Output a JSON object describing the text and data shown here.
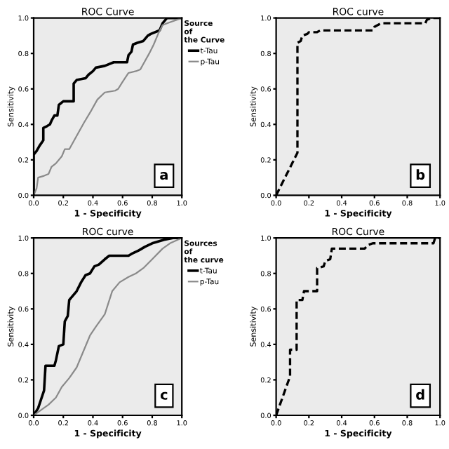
{
  "chart_data": [
    {
      "type": "line",
      "title": "ROC Curve",
      "xlabel": "1 - Specificity",
      "ylabel": "Sensitivity",
      "legend_title": "Source of the Curve",
      "legend": "right",
      "annotations": [
        "a"
      ],
      "xlim": [
        0,
        1
      ],
      "ylim": [
        0,
        1
      ],
      "xticks": [
        {
          "value": 0,
          "label": "0.0"
        },
        {
          "value": 0.2,
          "label": "0.2"
        },
        {
          "value": 0.4,
          "label": "0.4"
        },
        {
          "value": 0.6,
          "label": "0.6"
        },
        {
          "value": 0.8,
          "label": "0.8"
        },
        {
          "value": 1,
          "label": "1.0"
        }
      ],
      "yticks": [
        {
          "value": 0,
          "label": "0.0"
        },
        {
          "value": 0.2,
          "label": "0.2"
        },
        {
          "value": 0.4,
          "label": "0.4"
        },
        {
          "value": 0.6,
          "label": "0.6"
        },
        {
          "value": 0.8,
          "label": "0.8"
        },
        {
          "value": 1,
          "label": "1.0"
        }
      ],
      "grid": false,
      "series": [
        {
          "name": "t-Tau",
          "color": "#000000",
          "line_style": "solid",
          "x": [
            0,
            0,
            0.02,
            0.04,
            0.065,
            0.065,
            0.09,
            0.11,
            0.12,
            0.14,
            0.16,
            0.17,
            0.2,
            0.27,
            0.27,
            0.29,
            0.35,
            0.37,
            0.4,
            0.42,
            0.48,
            0.54,
            0.63,
            0.64,
            0.66,
            0.67,
            0.7,
            0.74,
            0.77,
            0.79,
            0.85,
            0.87,
            0.9,
            1.0
          ],
          "values": [
            0,
            0.23,
            0.25,
            0.28,
            0.31,
            0.38,
            0.39,
            0.4,
            0.42,
            0.45,
            0.45,
            0.51,
            0.53,
            0.53,
            0.63,
            0.65,
            0.66,
            0.68,
            0.7,
            0.72,
            0.73,
            0.75,
            0.75,
            0.79,
            0.81,
            0.85,
            0.86,
            0.87,
            0.9,
            0.91,
            0.93,
            0.97,
            1.0,
            1.0
          ]
        },
        {
          "name": "p-Tau",
          "color": "#8a8a8a",
          "line_style": "solid",
          "x": [
            0,
            0.02,
            0.03,
            0.07,
            0.1,
            0.12,
            0.15,
            0.19,
            0.21,
            0.24,
            0.28,
            0.34,
            0.39,
            0.43,
            0.48,
            0.55,
            0.57,
            0.6,
            0.64,
            0.69,
            0.72,
            0.74,
            0.78,
            0.81,
            0.84,
            0.87,
            0.9,
            1.0
          ],
          "values": [
            0,
            0.04,
            0.1,
            0.11,
            0.12,
            0.16,
            0.18,
            0.22,
            0.26,
            0.26,
            0.32,
            0.41,
            0.48,
            0.54,
            0.58,
            0.59,
            0.6,
            0.64,
            0.69,
            0.7,
            0.71,
            0.74,
            0.8,
            0.85,
            0.91,
            0.96,
            0.97,
            1.0
          ]
        }
      ]
    },
    {
      "type": "line",
      "title": "ROC curve",
      "xlabel": "1 - Specificity",
      "ylabel": "Sensitivity",
      "annotations": [
        "b"
      ],
      "xlim": [
        0,
        1
      ],
      "ylim": [
        0,
        1
      ],
      "xticks": [
        {
          "value": 0,
          "label": "0.0"
        },
        {
          "value": 0.2,
          "label": "0.2"
        },
        {
          "value": 0.4,
          "label": "0.4"
        },
        {
          "value": 0.6,
          "label": "0.6"
        },
        {
          "value": 0.8,
          "label": "0.8"
        },
        {
          "value": 1,
          "label": "1.0"
        }
      ],
      "yticks": [
        {
          "value": 0,
          "label": "0.0"
        },
        {
          "value": 0.2,
          "label": "0.2"
        },
        {
          "value": 0.4,
          "label": "0.4"
        },
        {
          "value": 0.6,
          "label": "0.6"
        },
        {
          "value": 0.8,
          "label": "0.8"
        },
        {
          "value": 1,
          "label": "1.0"
        }
      ],
      "grid": false,
      "series": [
        {
          "color": "#000000",
          "line_style": "dashed",
          "x": [
            0,
            0.13,
            0.13,
            0.15,
            0.16,
            0.19,
            0.2,
            0.25,
            0.27,
            0.59,
            0.6,
            0.64,
            0.91,
            0.92,
            0.95,
            1.0
          ],
          "values": [
            0,
            0.24,
            0.86,
            0.87,
            0.9,
            0.91,
            0.92,
            0.92,
            0.93,
            0.93,
            0.95,
            0.97,
            0.97,
            0.99,
            1.0,
            1.0
          ]
        }
      ]
    },
    {
      "type": "line",
      "title": "ROC curve",
      "xlabel": "1 - Specificity",
      "ylabel": "Sensitivity",
      "legend_title": "Sources of the curve",
      "legend": "right",
      "annotations": [
        "c"
      ],
      "xlim": [
        0,
        1
      ],
      "ylim": [
        0,
        1
      ],
      "xticks": [
        {
          "value": 0,
          "label": "0.0"
        },
        {
          "value": 0.2,
          "label": "0.2"
        },
        {
          "value": 0.4,
          "label": "0.4"
        },
        {
          "value": 0.6,
          "label": "0.6"
        },
        {
          "value": 0.8,
          "label": "0.8"
        },
        {
          "value": 1,
          "label": "1.0"
        }
      ],
      "yticks": [
        {
          "value": 0,
          "label": "0.0"
        },
        {
          "value": 0.2,
          "label": "0.2"
        },
        {
          "value": 0.4,
          "label": "0.4"
        },
        {
          "value": 0.6,
          "label": "0.6"
        },
        {
          "value": 0.8,
          "label": "0.8"
        },
        {
          "value": 1,
          "label": "1.0"
        }
      ],
      "grid": false,
      "series": [
        {
          "name": "t-Tau",
          "color": "#000000",
          "line_style": "solid",
          "x": [
            0,
            0.03,
            0.05,
            0.07,
            0.08,
            0.14,
            0.15,
            0.17,
            0.2,
            0.21,
            0.23,
            0.24,
            0.26,
            0.29,
            0.32,
            0.35,
            0.38,
            0.41,
            0.44,
            0.48,
            0.51,
            0.64,
            0.66,
            0.71,
            0.75,
            0.8,
            0.88,
            0.94,
            1.0
          ],
          "values": [
            0,
            0.04,
            0.09,
            0.14,
            0.28,
            0.28,
            0.31,
            0.39,
            0.4,
            0.53,
            0.56,
            0.65,
            0.67,
            0.7,
            0.75,
            0.79,
            0.8,
            0.84,
            0.85,
            0.88,
            0.9,
            0.9,
            0.91,
            0.93,
            0.95,
            0.97,
            0.99,
            1.0,
            1.0
          ]
        },
        {
          "name": "p-Tau",
          "color": "#8a8a8a",
          "line_style": "solid",
          "x": [
            0,
            0.05,
            0.1,
            0.15,
            0.19,
            0.24,
            0.29,
            0.33,
            0.38,
            0.42,
            0.48,
            0.53,
            0.58,
            0.64,
            0.69,
            0.74,
            0.8,
            0.87,
            0.92,
            1.0
          ],
          "values": [
            0,
            0.03,
            0.06,
            0.1,
            0.16,
            0.21,
            0.27,
            0.35,
            0.45,
            0.5,
            0.57,
            0.7,
            0.75,
            0.78,
            0.8,
            0.83,
            0.88,
            0.94,
            0.97,
            1.0
          ]
        }
      ]
    },
    {
      "type": "line",
      "title": "ROC Curve",
      "xlabel": "1 - Specificity",
      "ylabel": "Sensitivity",
      "annotations": [
        "d"
      ],
      "xlim": [
        0,
        1
      ],
      "ylim": [
        0,
        1
      ],
      "xticks": [
        {
          "value": 0,
          "label": "0.0"
        },
        {
          "value": 0.2,
          "label": "0.2"
        },
        {
          "value": 0.4,
          "label": "0.4"
        },
        {
          "value": 0.6,
          "label": "0.6"
        },
        {
          "value": 0.8,
          "label": "0.8"
        },
        {
          "value": 1,
          "label": "1.0"
        }
      ],
      "yticks": [
        {
          "value": 0,
          "label": "0.0"
        },
        {
          "value": 0.2,
          "label": "0.2"
        },
        {
          "value": 0.4,
          "label": "0.4"
        },
        {
          "value": 0.6,
          "label": "0.6"
        },
        {
          "value": 0.8,
          "label": "0.8"
        },
        {
          "value": 1,
          "label": "1.0"
        }
      ],
      "grid": false,
      "series": [
        {
          "color": "#000000",
          "line_style": "dashed",
          "x": [
            0,
            0.085,
            0.085,
            0.125,
            0.125,
            0.16,
            0.17,
            0.25,
            0.25,
            0.29,
            0.3,
            0.33,
            0.34,
            0.54,
            0.56,
            0.59,
            0.96,
            0.97,
            1.0
          ],
          "values": [
            0,
            0.22,
            0.37,
            0.37,
            0.65,
            0.65,
            0.7,
            0.7,
            0.83,
            0.84,
            0.87,
            0.88,
            0.94,
            0.94,
            0.96,
            0.97,
            0.97,
            1.0,
            1.0
          ]
        }
      ]
    }
  ]
}
